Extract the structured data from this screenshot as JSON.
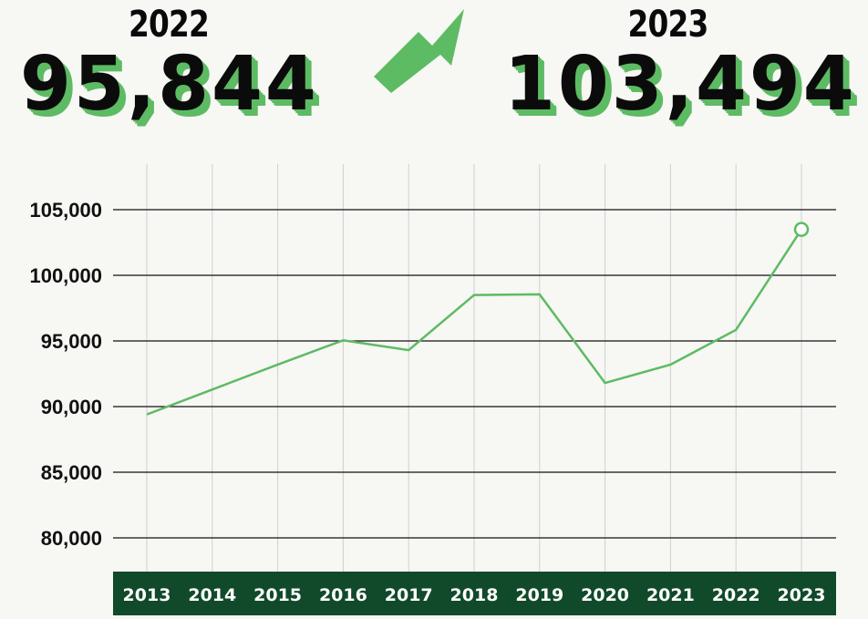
{
  "headline": {
    "left_year": "2022",
    "left_value": "95,844",
    "right_year": "2023",
    "right_value": "103,494"
  },
  "colors": {
    "line": "#5dbb63",
    "axis_band": "#114a2a",
    "grid": "#111111",
    "background": "#f7f7f4"
  },
  "icons": {
    "arrow": "arrow-up-right-icon"
  },
  "chart_data": {
    "type": "line",
    "categories": [
      "2013",
      "2014",
      "2015",
      "2016",
      "2017",
      "2018",
      "2019",
      "2020",
      "2021",
      "2022",
      "2023"
    ],
    "values": [
      89400,
      91300,
      93200,
      95050,
      94300,
      98500,
      98550,
      91800,
      93200,
      95844,
      103494
    ],
    "yticks": [
      80000,
      85000,
      90000,
      95000,
      100000,
      105000
    ],
    "ytick_labels": [
      "80,000",
      "85,000",
      "90,000",
      "95,000",
      "100,000",
      "105,000"
    ],
    "ylim": [
      77500,
      108500
    ],
    "grid": true,
    "highlight_last_point": true
  }
}
